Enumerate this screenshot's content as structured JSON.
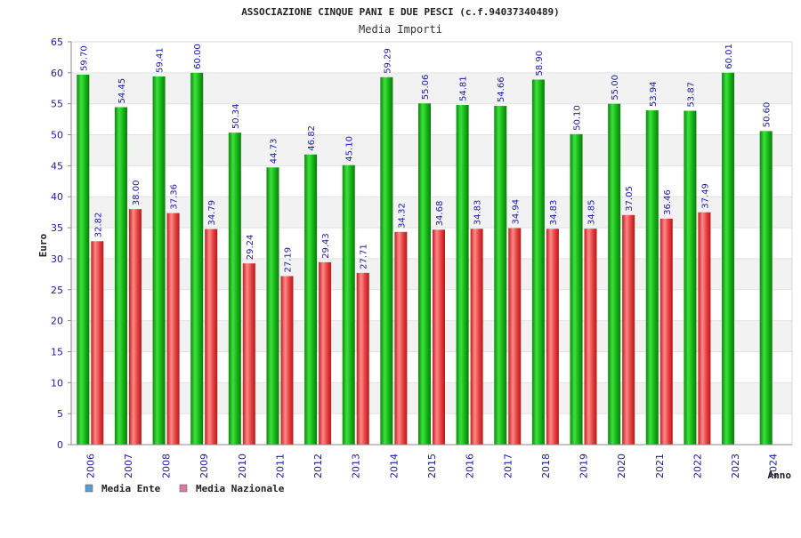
{
  "chart_data": {
    "type": "bar",
    "title": "ASSOCIAZIONE CINQUE PANI E DUE PESCI (c.f.94037340489)",
    "subtitle": "Media Importi",
    "ylabel": "Euro",
    "xlabel": "Anno",
    "ylim": [
      0,
      65
    ],
    "yticks": [
      0,
      5,
      10,
      15,
      20,
      25,
      30,
      35,
      40,
      45,
      50,
      55,
      60,
      65
    ],
    "grid": true,
    "legend_position": "bottom-left",
    "categories": [
      "2006",
      "2007",
      "2008",
      "2009",
      "2010",
      "2011",
      "2012",
      "2013",
      "2014",
      "2015",
      "2016",
      "2017",
      "2018",
      "2019",
      "2020",
      "2021",
      "2022",
      "2023",
      "2024"
    ],
    "series": [
      {
        "name": "Media Ente",
        "color": "#1fbf1f",
        "legend_color": "#5b9bd5",
        "values": [
          59.7,
          54.45,
          59.41,
          60.0,
          50.34,
          44.73,
          46.82,
          45.1,
          59.29,
          55.06,
          54.81,
          54.66,
          58.9,
          50.1,
          55.0,
          53.94,
          53.87,
          60.01,
          50.6
        ],
        "labels": [
          "59.70",
          "54.45",
          "59.41",
          "60.00",
          "50.34",
          "44.73",
          "46.82",
          "45.10",
          "59.29",
          "55.06",
          "54.81",
          "54.66",
          "58.90",
          "50.10",
          "55.00",
          "53.94",
          "53.87",
          "60.01",
          "50.60"
        ]
      },
      {
        "name": "Media Nazionale",
        "color": "#e03a3a",
        "legend_color": "#d97aa8",
        "values": [
          32.82,
          38.0,
          37.36,
          34.79,
          29.24,
          27.19,
          29.43,
          27.71,
          34.32,
          34.68,
          34.83,
          34.94,
          34.83,
          34.85,
          37.05,
          36.46,
          37.49,
          null,
          null
        ],
        "labels": [
          "32.82",
          "38.00",
          "37.36",
          "34.79",
          "29.24",
          "27.19",
          "29.43",
          "27.71",
          "34.32",
          "34.68",
          "34.83",
          "34.94",
          "34.83",
          "34.85",
          "37.05",
          "36.46",
          "37.49",
          "",
          ""
        ]
      }
    ]
  }
}
